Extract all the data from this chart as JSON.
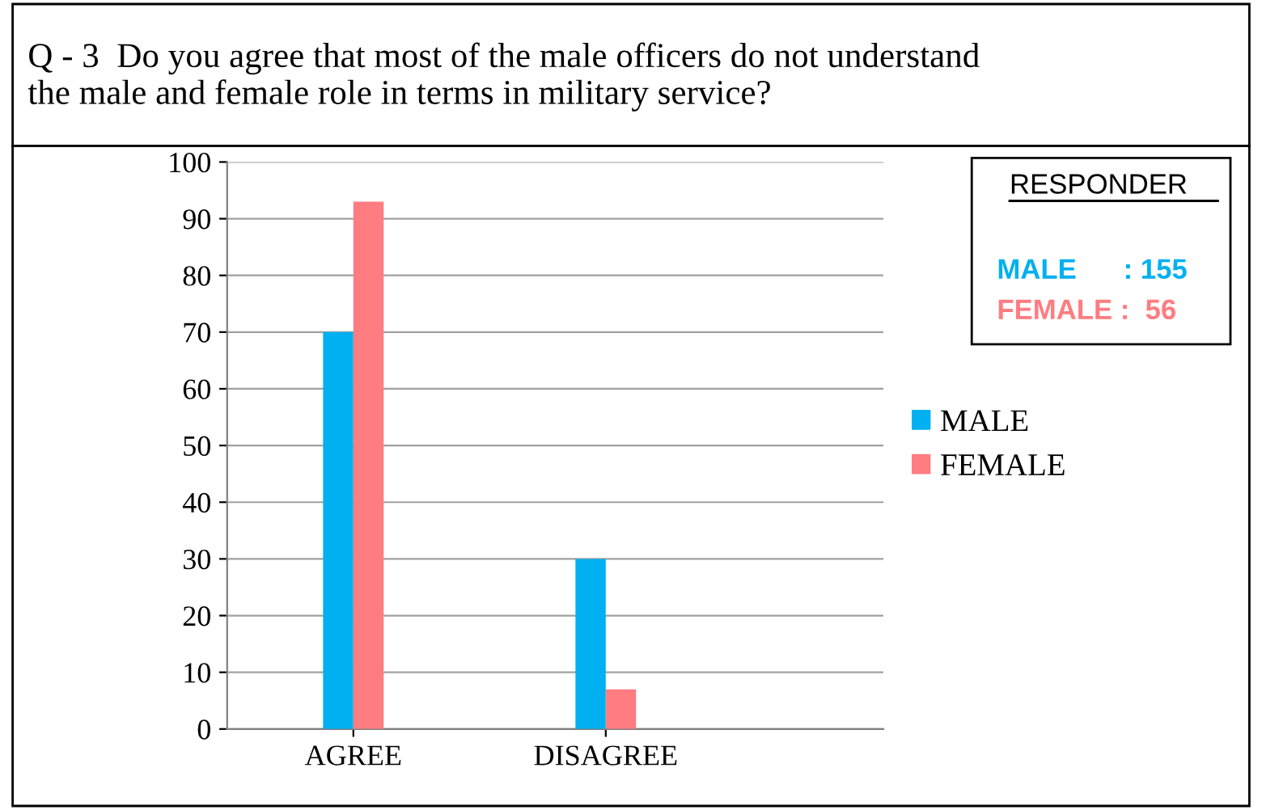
{
  "chart_data": {
    "type": "bar",
    "title": "Q - 3  Do you agree that most of the male officers do not understand\nthe male and female role in terms in military service?",
    "categories": [
      "AGREE",
      "DISAGREE"
    ],
    "series": [
      {
        "name": "MALE",
        "color": "#00b0f0",
        "values": [
          70,
          30
        ]
      },
      {
        "name": "FEMALE",
        "color": "#ff7c80",
        "values": [
          93,
          7
        ]
      }
    ],
    "ylim": [
      0,
      100
    ],
    "yticks": [
      0,
      10,
      20,
      30,
      40,
      50,
      60,
      70,
      80,
      90,
      100
    ],
    "grid": "y",
    "legend": "right",
    "annotations": [
      "RESPONDER",
      "MALE      : 155",
      "FEMALE :  56"
    ]
  }
}
